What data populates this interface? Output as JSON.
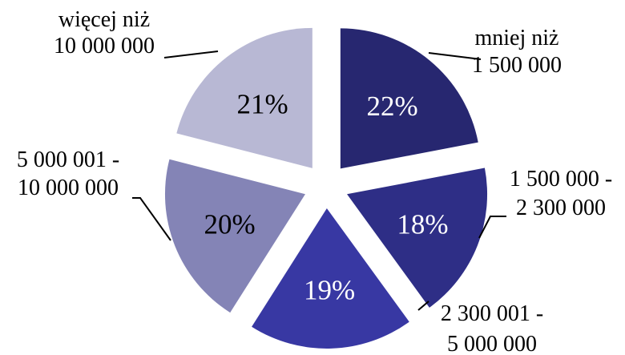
{
  "chart_data": {
    "type": "pie",
    "exploded": true,
    "start_angle_deg": 0,
    "direction": "clockwise",
    "slices": [
      {
        "label_lines": [
          "mniej niż",
          "1 500 000"
        ],
        "value": 22,
        "value_label": "22%",
        "color": "#272770",
        "text_color": "#ffffff"
      },
      {
        "label_lines": [
          "1 500 000 -",
          "2 300 000"
        ],
        "value": 18,
        "value_label": "18%",
        "color": "#2e2e86",
        "text_color": "#ffffff"
      },
      {
        "label_lines": [
          "2 300 001 -",
          "5 000 000"
        ],
        "value": 19,
        "value_label": "19%",
        "color": "#3838a3",
        "text_color": "#ffffff"
      },
      {
        "label_lines": [
          "5 000 001 -",
          "10 000 000"
        ],
        "value": 20,
        "value_label": "20%",
        "color": "#8484b6",
        "text_color": "#000000"
      },
      {
        "label_lines": [
          "więcej niż",
          "10 000 000"
        ],
        "value": 21,
        "value_label": "21%",
        "color": "#b8b8d4",
        "text_color": "#000000"
      }
    ]
  }
}
